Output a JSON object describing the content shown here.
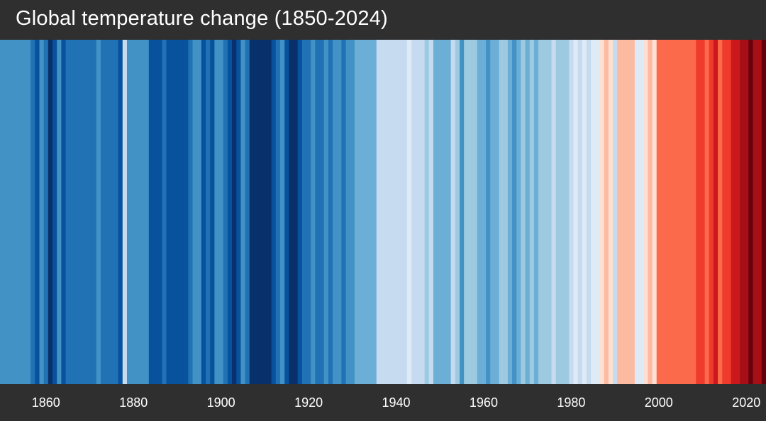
{
  "chart_data": {
    "type": "heatmap",
    "title": "Global temperature change (1850-2024)",
    "xlim": [
      1850,
      2024
    ],
    "x_ticks": [
      "1860",
      "1880",
      "1900",
      "1920",
      "1940",
      "1960",
      "1980",
      "2000",
      "2020"
    ],
    "palette": [
      "#08306b",
      "#08519c",
      "#2171b5",
      "#4292c6",
      "#6baed6",
      "#9ecae1",
      "#c6dbef",
      "#deebf7",
      "#fee0d2",
      "#fcbba1",
      "#fc9272",
      "#fb6a4a",
      "#ef3b2c",
      "#cb181d",
      "#a50f15",
      "#67000d"
    ],
    "years": [
      1850,
      1851,
      1852,
      1853,
      1854,
      1855,
      1856,
      1857,
      1858,
      1859,
      1860,
      1861,
      1862,
      1863,
      1864,
      1865,
      1866,
      1867,
      1868,
      1869,
      1870,
      1871,
      1872,
      1873,
      1874,
      1875,
      1876,
      1877,
      1878,
      1879,
      1880,
      1881,
      1882,
      1883,
      1884,
      1885,
      1886,
      1887,
      1888,
      1889,
      1890,
      1891,
      1892,
      1893,
      1894,
      1895,
      1896,
      1897,
      1898,
      1899,
      1900,
      1901,
      1902,
      1903,
      1904,
      1905,
      1906,
      1907,
      1908,
      1909,
      1910,
      1911,
      1912,
      1913,
      1914,
      1915,
      1916,
      1917,
      1918,
      1919,
      1920,
      1921,
      1922,
      1923,
      1924,
      1925,
      1926,
      1927,
      1928,
      1929,
      1930,
      1931,
      1932,
      1933,
      1934,
      1935,
      1936,
      1937,
      1938,
      1939,
      1940,
      1941,
      1942,
      1943,
      1944,
      1945,
      1946,
      1947,
      1948,
      1949,
      1950,
      1951,
      1952,
      1953,
      1954,
      1955,
      1956,
      1957,
      1958,
      1959,
      1960,
      1961,
      1962,
      1963,
      1964,
      1965,
      1966,
      1967,
      1968,
      1969,
      1970,
      1971,
      1972,
      1973,
      1974,
      1975,
      1976,
      1977,
      1978,
      1979,
      1980,
      1981,
      1982,
      1983,
      1984,
      1985,
      1986,
      1987,
      1988,
      1989,
      1990,
      1991,
      1992,
      1993,
      1994,
      1995,
      1996,
      1997,
      1998,
      1999,
      2000,
      2001,
      2002,
      2003,
      2004,
      2005,
      2006,
      2007,
      2008,
      2009,
      2010,
      2011,
      2012,
      2013,
      2014,
      2015,
      2016,
      2017,
      2018,
      2019,
      2020,
      2021,
      2022,
      2023,
      2024
    ],
    "color_index": [
      3,
      3,
      3,
      3,
      3,
      3,
      3,
      2,
      1,
      3,
      2,
      0,
      1,
      3,
      1,
      2,
      2,
      2,
      2,
      2,
      2,
      2,
      3,
      2,
      2,
      2,
      2,
      1,
      6,
      3,
      3,
      3,
      3,
      3,
      1,
      1,
      1,
      2,
      1,
      1,
      1,
      1,
      1,
      2,
      3,
      3,
      1,
      2,
      1,
      3,
      3,
      2,
      1,
      0,
      1,
      3,
      2,
      0,
      0,
      0,
      0,
      0,
      1,
      2,
      3,
      1,
      0,
      0,
      1,
      2,
      2,
      3,
      2,
      2,
      3,
      2,
      3,
      3,
      2,
      3,
      3,
      4,
      4,
      4,
      4,
      4,
      6,
      6,
      6,
      6,
      6,
      6,
      6,
      7,
      6,
      6,
      6,
      5,
      6,
      4,
      4,
      4,
      4,
      6,
      5,
      3,
      5,
      5,
      5,
      4,
      4,
      3,
      4,
      4,
      5,
      5,
      4,
      3,
      4,
      5,
      4,
      5,
      4,
      5,
      5,
      5,
      6,
      5,
      5,
      5,
      6,
      7,
      6,
      7,
      6,
      7,
      7,
      8,
      9,
      8,
      6,
      9,
      9,
      9,
      9,
      7,
      7,
      8,
      9,
      8,
      11,
      11,
      11,
      11,
      11,
      11,
      11,
      11,
      11,
      12,
      12,
      11,
      12,
      13,
      11,
      12,
      12,
      13,
      13,
      14,
      14,
      15,
      14,
      14,
      15
    ]
  }
}
